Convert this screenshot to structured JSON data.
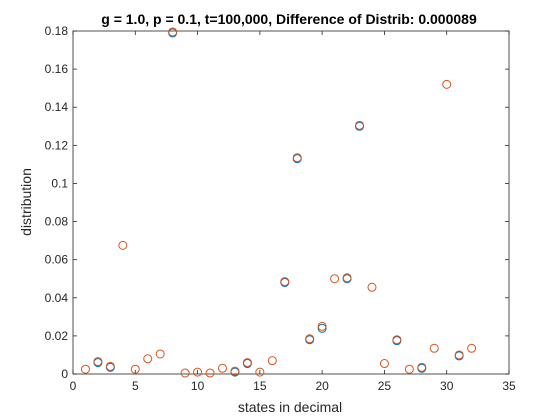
{
  "chart_data": {
    "type": "scatter",
    "title": "g = 1.0, p = 0.1, t=100,000, Difference of Distrib: 0.000089",
    "xlabel": "states in decimal",
    "ylabel": "distribution",
    "xlim": [
      0,
      35
    ],
    "ylim": [
      0,
      0.18
    ],
    "xticks": [
      0,
      5,
      10,
      15,
      20,
      25,
      30,
      35
    ],
    "xtick_labels": [
      "0",
      "5",
      "10",
      "15",
      "20",
      "25",
      "30",
      "35"
    ],
    "yticks": [
      0,
      0.02,
      0.04,
      0.06,
      0.08,
      0.1,
      0.12,
      0.14,
      0.16,
      0.18
    ],
    "ytick_labels": [
      "0",
      "0.02",
      "0.04",
      "0.06",
      "0.08",
      "0.1",
      "0.12",
      "0.14",
      "0.16",
      "0.18"
    ],
    "grid": false,
    "series": [
      {
        "color": "#0072BD",
        "marker": "circle-open",
        "x": [
          2,
          3,
          8,
          13,
          14,
          17,
          18,
          19,
          20,
          22,
          23,
          26,
          28,
          31
        ],
        "y": [
          0.006,
          0.0035,
          0.179,
          0.001,
          0.0055,
          0.048,
          0.113,
          0.018,
          0.024,
          0.05,
          0.13,
          0.0175,
          0.003,
          0.0095
        ]
      },
      {
        "color": "#D95319",
        "marker": "circle-open",
        "x": [
          1,
          2,
          3,
          4,
          5,
          6,
          7,
          8,
          9,
          10,
          11,
          12,
          13,
          14,
          15,
          16,
          17,
          18,
          19,
          20,
          21,
          22,
          23,
          24,
          25,
          26,
          27,
          28,
          29,
          30,
          31,
          32
        ],
        "y": [
          0.0025,
          0.0065,
          0.004,
          0.0675,
          0.0025,
          0.008,
          0.0105,
          0.1795,
          0.0005,
          0.001,
          0.0005,
          0.003,
          0.0015,
          0.006,
          0.001,
          0.007,
          0.0485,
          0.1135,
          0.0185,
          0.025,
          0.05,
          0.0505,
          0.1305,
          0.0455,
          0.0055,
          0.018,
          0.0025,
          0.0035,
          0.0135,
          0.152,
          0.01,
          0.0135
        ]
      }
    ]
  }
}
